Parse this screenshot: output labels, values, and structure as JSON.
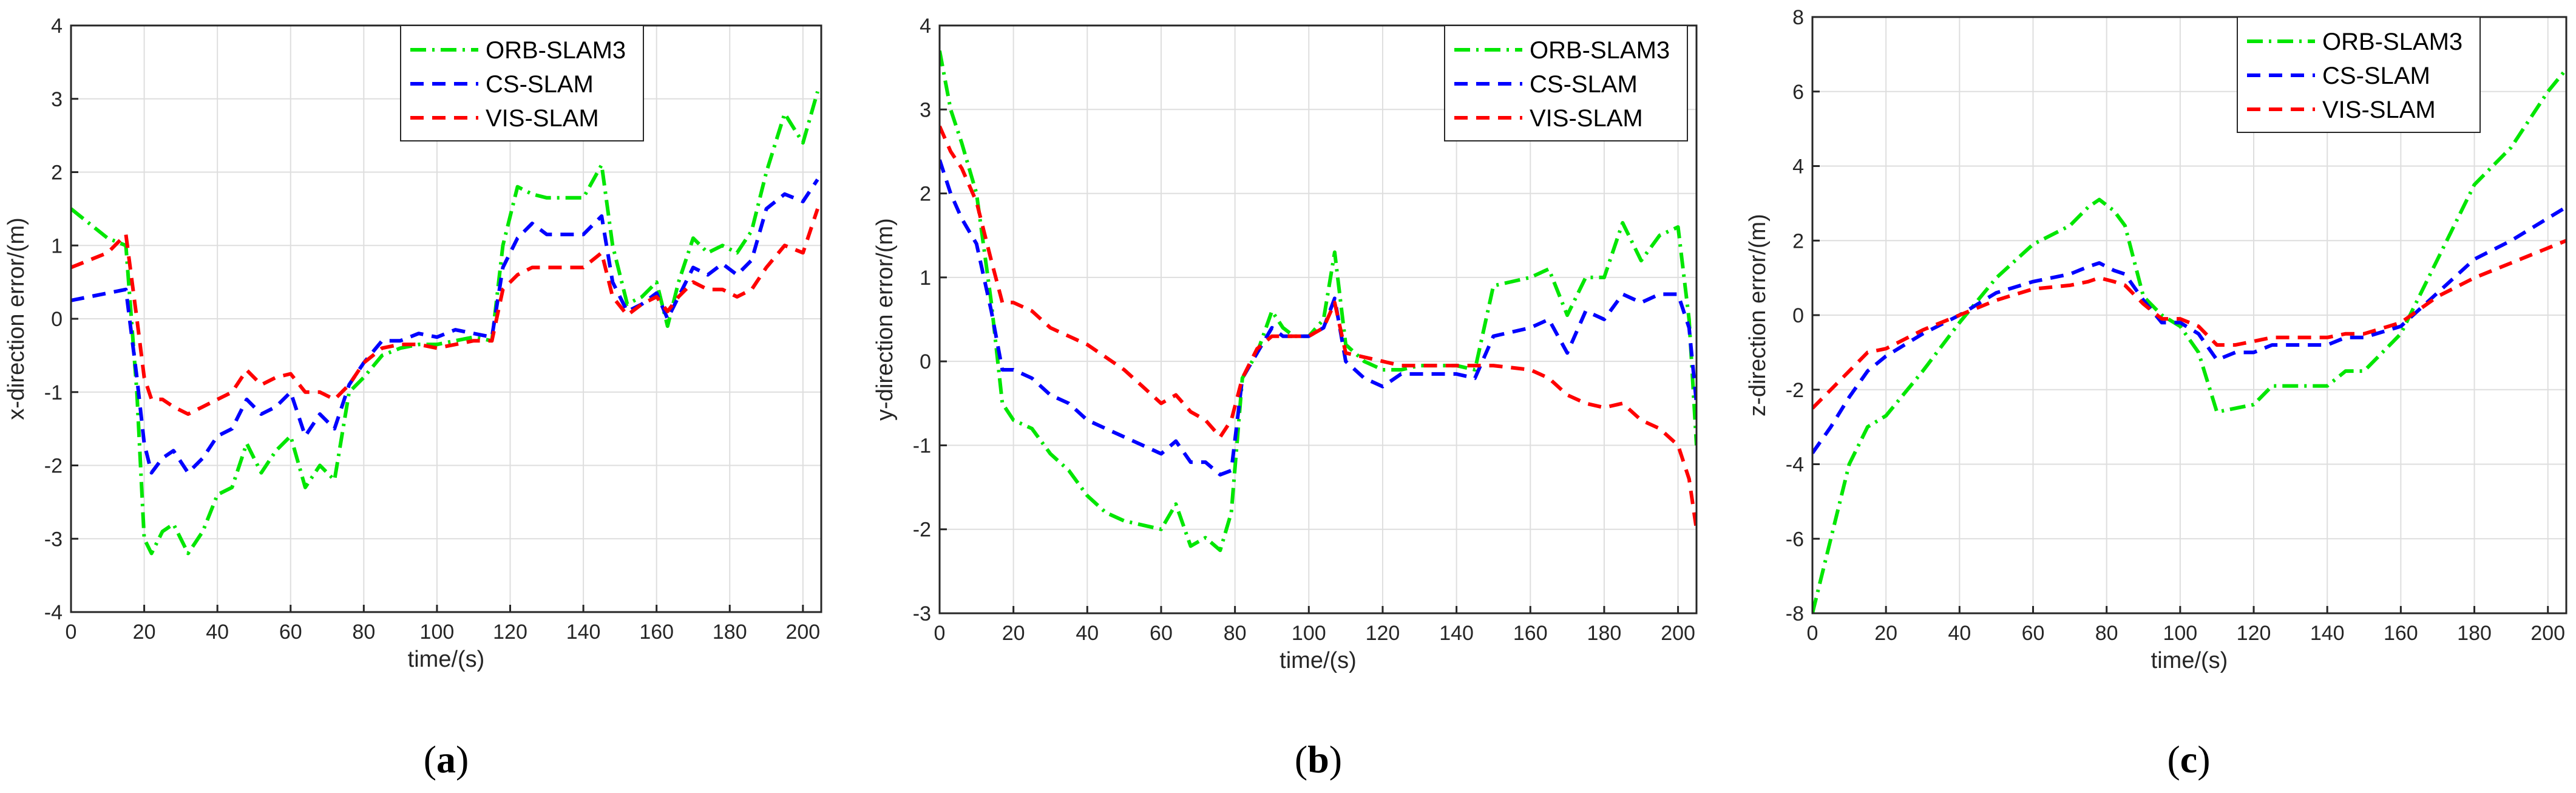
{
  "chart_data": [
    {
      "type": "line",
      "id": "a",
      "caption": "a",
      "xlabel": "time/(s)",
      "ylabel": "x-direction error/(m)",
      "xlim": [
        0,
        205
      ],
      "ylim": [
        -4,
        4
      ],
      "xticks": [
        0,
        20,
        40,
        60,
        80,
        100,
        120,
        140,
        160,
        180,
        200
      ],
      "yticks": [
        -4,
        -3,
        -2,
        -1,
        0,
        1,
        2,
        3,
        4
      ],
      "grid": true,
      "legend": "top-right",
      "series": [
        {
          "name": "ORB-SLAM3",
          "color": "#00e600",
          "style": "dashdot",
          "x": [
            0,
            5,
            10,
            15,
            18,
            20,
            22,
            25,
            28,
            32,
            36,
            40,
            44,
            48,
            52,
            56,
            60,
            64,
            68,
            72,
            76,
            80,
            85,
            90,
            95,
            100,
            105,
            110,
            115,
            118,
            122,
            126,
            130,
            135,
            140,
            145,
            148,
            152,
            156,
            160,
            163,
            166,
            170,
            174,
            178,
            182,
            186,
            190,
            195,
            200,
            204
          ],
          "y": [
            1.5,
            1.3,
            1.1,
            1.0,
            -1.0,
            -3.0,
            -3.2,
            -2.9,
            -2.8,
            -3.2,
            -2.9,
            -2.4,
            -2.3,
            -1.7,
            -2.1,
            -1.8,
            -1.6,
            -2.3,
            -2.0,
            -2.2,
            -1.0,
            -0.8,
            -0.5,
            -0.4,
            -0.35,
            -0.35,
            -0.3,
            -0.25,
            -0.3,
            1.0,
            1.8,
            1.7,
            1.65,
            1.65,
            1.65,
            2.1,
            1.0,
            0.2,
            0.3,
            0.5,
            -0.1,
            0.5,
            1.1,
            0.9,
            1.0,
            0.9,
            1.2,
            2.0,
            2.8,
            2.4,
            3.1
          ]
        },
        {
          "name": "CS-SLAM",
          "color": "#0000ff",
          "style": "dashed",
          "x": [
            0,
            5,
            10,
            15,
            18,
            20,
            22,
            25,
            28,
            32,
            36,
            40,
            44,
            48,
            52,
            56,
            60,
            64,
            68,
            72,
            76,
            80,
            85,
            90,
            95,
            100,
            105,
            110,
            115,
            118,
            122,
            126,
            130,
            135,
            140,
            145,
            148,
            152,
            156,
            160,
            163,
            166,
            170,
            174,
            178,
            182,
            186,
            190,
            195,
            200,
            204
          ],
          "y": [
            0.25,
            0.3,
            0.35,
            0.4,
            -0.8,
            -1.7,
            -2.1,
            -1.9,
            -1.8,
            -2.1,
            -1.9,
            -1.6,
            -1.5,
            -1.1,
            -1.3,
            -1.2,
            -1.0,
            -1.6,
            -1.3,
            -1.5,
            -0.9,
            -0.6,
            -0.3,
            -0.3,
            -0.2,
            -0.25,
            -0.15,
            -0.2,
            -0.25,
            0.7,
            1.1,
            1.3,
            1.15,
            1.15,
            1.15,
            1.4,
            0.5,
            0.1,
            0.2,
            0.35,
            0.0,
            0.3,
            0.7,
            0.6,
            0.75,
            0.6,
            0.8,
            1.5,
            1.7,
            1.6,
            1.9
          ]
        },
        {
          "name": "VIS-SLAM",
          "color": "#ff0000",
          "style": "dashed",
          "x": [
            0,
            5,
            10,
            15,
            18,
            20,
            22,
            25,
            28,
            32,
            36,
            40,
            44,
            48,
            52,
            56,
            60,
            64,
            68,
            72,
            76,
            80,
            85,
            90,
            95,
            100,
            105,
            110,
            115,
            118,
            122,
            126,
            130,
            135,
            140,
            145,
            148,
            152,
            156,
            160,
            163,
            166,
            170,
            174,
            178,
            182,
            186,
            190,
            195,
            200,
            204
          ],
          "y": [
            0.7,
            0.8,
            0.9,
            1.15,
            0.0,
            -0.8,
            -1.1,
            -1.1,
            -1.2,
            -1.3,
            -1.2,
            -1.1,
            -1.0,
            -0.7,
            -0.9,
            -0.8,
            -0.75,
            -1.0,
            -1.0,
            -1.1,
            -0.9,
            -0.6,
            -0.4,
            -0.35,
            -0.35,
            -0.4,
            -0.35,
            -0.3,
            -0.3,
            0.4,
            0.6,
            0.7,
            0.7,
            0.7,
            0.7,
            0.9,
            0.3,
            0.05,
            0.2,
            0.3,
            0.1,
            0.3,
            0.5,
            0.4,
            0.4,
            0.3,
            0.4,
            0.7,
            1.0,
            0.9,
            1.5
          ]
        }
      ]
    },
    {
      "type": "line",
      "id": "b",
      "caption": "b",
      "xlabel": "time/(s)",
      "ylabel": "y-direction error/(m)",
      "xlim": [
        0,
        205
      ],
      "ylim": [
        -3,
        4
      ],
      "xticks": [
        0,
        20,
        40,
        60,
        80,
        100,
        120,
        140,
        160,
        180,
        200
      ],
      "yticks": [
        -3,
        -2,
        -1,
        0,
        1,
        2,
        3,
        4
      ],
      "grid": true,
      "legend": "top-right",
      "series": [
        {
          "name": "ORB-SLAM3",
          "color": "#00e600",
          "style": "dashdot",
          "x": [
            0,
            3,
            6,
            10,
            14,
            17,
            20,
            25,
            30,
            35,
            40,
            45,
            50,
            55,
            60,
            64,
            68,
            72,
            76,
            79,
            82,
            86,
            90,
            93,
            96,
            100,
            104,
            107,
            110,
            115,
            120,
            125,
            130,
            140,
            145,
            150,
            160,
            165,
            170,
            175,
            180,
            185,
            190,
            195,
            200,
            203,
            205
          ],
          "y": [
            3.7,
            3.0,
            2.6,
            2.0,
            0.7,
            -0.5,
            -0.7,
            -0.8,
            -1.1,
            -1.3,
            -1.6,
            -1.8,
            -1.9,
            -1.95,
            -2.0,
            -1.7,
            -2.2,
            -2.1,
            -2.25,
            -1.8,
            -0.2,
            0.1,
            0.6,
            0.4,
            0.3,
            0.3,
            0.5,
            1.3,
            0.2,
            0.0,
            -0.1,
            -0.1,
            -0.05,
            -0.05,
            -0.1,
            0.9,
            1.0,
            1.1,
            0.55,
            1.0,
            1.0,
            1.65,
            1.2,
            1.5,
            1.6,
            0.5,
            -1.0
          ]
        },
        {
          "name": "CS-SLAM",
          "color": "#0000ff",
          "style": "dashed",
          "x": [
            0,
            3,
            6,
            10,
            14,
            17,
            20,
            25,
            30,
            35,
            40,
            45,
            50,
            55,
            60,
            64,
            68,
            72,
            76,
            79,
            82,
            86,
            90,
            93,
            96,
            100,
            104,
            107,
            110,
            115,
            120,
            125,
            130,
            140,
            145,
            150,
            160,
            165,
            170,
            175,
            180,
            185,
            190,
            195,
            200,
            203,
            205
          ],
          "y": [
            2.4,
            2.0,
            1.7,
            1.4,
            0.6,
            -0.1,
            -0.1,
            -0.2,
            -0.4,
            -0.5,
            -0.7,
            -0.8,
            -0.9,
            -1.0,
            -1.1,
            -0.95,
            -1.2,
            -1.2,
            -1.35,
            -1.3,
            -0.2,
            0.1,
            0.4,
            0.3,
            0.3,
            0.3,
            0.4,
            0.75,
            0.0,
            -0.2,
            -0.3,
            -0.15,
            -0.15,
            -0.15,
            -0.2,
            0.3,
            0.4,
            0.5,
            0.1,
            0.6,
            0.5,
            0.8,
            0.7,
            0.8,
            0.8,
            0.4,
            -0.5
          ]
        },
        {
          "name": "VIS-SLAM",
          "color": "#ff0000",
          "style": "dashed",
          "x": [
            0,
            3,
            6,
            10,
            14,
            17,
            20,
            25,
            30,
            35,
            40,
            45,
            50,
            55,
            60,
            64,
            68,
            72,
            76,
            79,
            82,
            86,
            90,
            93,
            96,
            100,
            104,
            107,
            110,
            115,
            120,
            125,
            130,
            140,
            145,
            150,
            160,
            165,
            170,
            175,
            180,
            185,
            190,
            195,
            200,
            203,
            205
          ],
          "y": [
            2.8,
            2.5,
            2.3,
            1.9,
            1.2,
            0.7,
            0.7,
            0.6,
            0.4,
            0.3,
            0.2,
            0.05,
            -0.1,
            -0.3,
            -0.5,
            -0.4,
            -0.6,
            -0.7,
            -0.9,
            -0.7,
            -0.2,
            0.15,
            0.3,
            0.3,
            0.3,
            0.3,
            0.4,
            0.7,
            0.1,
            0.05,
            0.0,
            -0.05,
            -0.05,
            -0.05,
            -0.05,
            -0.05,
            -0.1,
            -0.2,
            -0.4,
            -0.5,
            -0.55,
            -0.5,
            -0.7,
            -0.8,
            -1.0,
            -1.4,
            -2.0
          ]
        }
      ]
    },
    {
      "type": "line",
      "id": "c",
      "caption": "c",
      "xlabel": "time/(s)",
      "ylabel": "z-direction error/(m)",
      "xlim": [
        0,
        205
      ],
      "ylim": [
        -8,
        8
      ],
      "xticks": [
        0,
        20,
        40,
        60,
        80,
        100,
        120,
        140,
        160,
        180,
        200
      ],
      "yticks": [
        -8,
        -6,
        -4,
        -2,
        0,
        2,
        4,
        6,
        8
      ],
      "grid": true,
      "legend": "top-right",
      "series": [
        {
          "name": "ORB-SLAM3",
          "color": "#00e600",
          "style": "dashdot",
          "x": [
            0,
            5,
            10,
            15,
            20,
            30,
            40,
            50,
            60,
            70,
            75,
            78,
            82,
            85,
            90,
            95,
            100,
            105,
            110,
            115,
            120,
            125,
            130,
            140,
            145,
            150,
            160,
            170,
            180,
            190,
            200,
            205
          ],
          "y": [
            -8.0,
            -6.0,
            -4.0,
            -3.0,
            -2.7,
            -1.5,
            -0.2,
            1.0,
            1.9,
            2.4,
            2.9,
            3.1,
            2.8,
            2.4,
            0.5,
            0.0,
            -0.3,
            -1.0,
            -2.6,
            -2.5,
            -2.4,
            -1.9,
            -1.9,
            -1.9,
            -1.5,
            -1.5,
            -0.5,
            1.5,
            3.5,
            4.5,
            6.0,
            6.6
          ]
        },
        {
          "name": "CS-SLAM",
          "color": "#0000ff",
          "style": "dashed",
          "x": [
            0,
            5,
            10,
            15,
            20,
            30,
            40,
            50,
            60,
            70,
            75,
            78,
            82,
            85,
            90,
            95,
            100,
            105,
            110,
            115,
            120,
            125,
            130,
            140,
            145,
            150,
            160,
            170,
            180,
            190,
            200,
            205
          ],
          "y": [
            -3.7,
            -3.0,
            -2.2,
            -1.5,
            -1.1,
            -0.5,
            0.0,
            0.6,
            0.9,
            1.1,
            1.3,
            1.4,
            1.2,
            1.1,
            0.4,
            -0.2,
            -0.2,
            -0.5,
            -1.2,
            -1.0,
            -1.0,
            -0.8,
            -0.8,
            -0.8,
            -0.6,
            -0.6,
            -0.3,
            0.6,
            1.5,
            2.0,
            2.6,
            2.9
          ]
        },
        {
          "name": "VIS-SLAM",
          "color": "#ff0000",
          "style": "dashed",
          "x": [
            0,
            5,
            10,
            15,
            20,
            30,
            40,
            50,
            60,
            70,
            75,
            78,
            82,
            85,
            90,
            95,
            100,
            105,
            110,
            115,
            120,
            125,
            130,
            140,
            145,
            150,
            160,
            170,
            180,
            190,
            200,
            205
          ],
          "y": [
            -2.5,
            -2.0,
            -1.5,
            -1.0,
            -0.9,
            -0.4,
            0.0,
            0.4,
            0.7,
            0.8,
            0.9,
            1.0,
            0.9,
            0.8,
            0.3,
            -0.1,
            -0.1,
            -0.3,
            -0.8,
            -0.8,
            -0.7,
            -0.6,
            -0.6,
            -0.6,
            -0.5,
            -0.5,
            -0.2,
            0.5,
            1.0,
            1.4,
            1.8,
            2.0
          ]
        }
      ]
    }
  ]
}
